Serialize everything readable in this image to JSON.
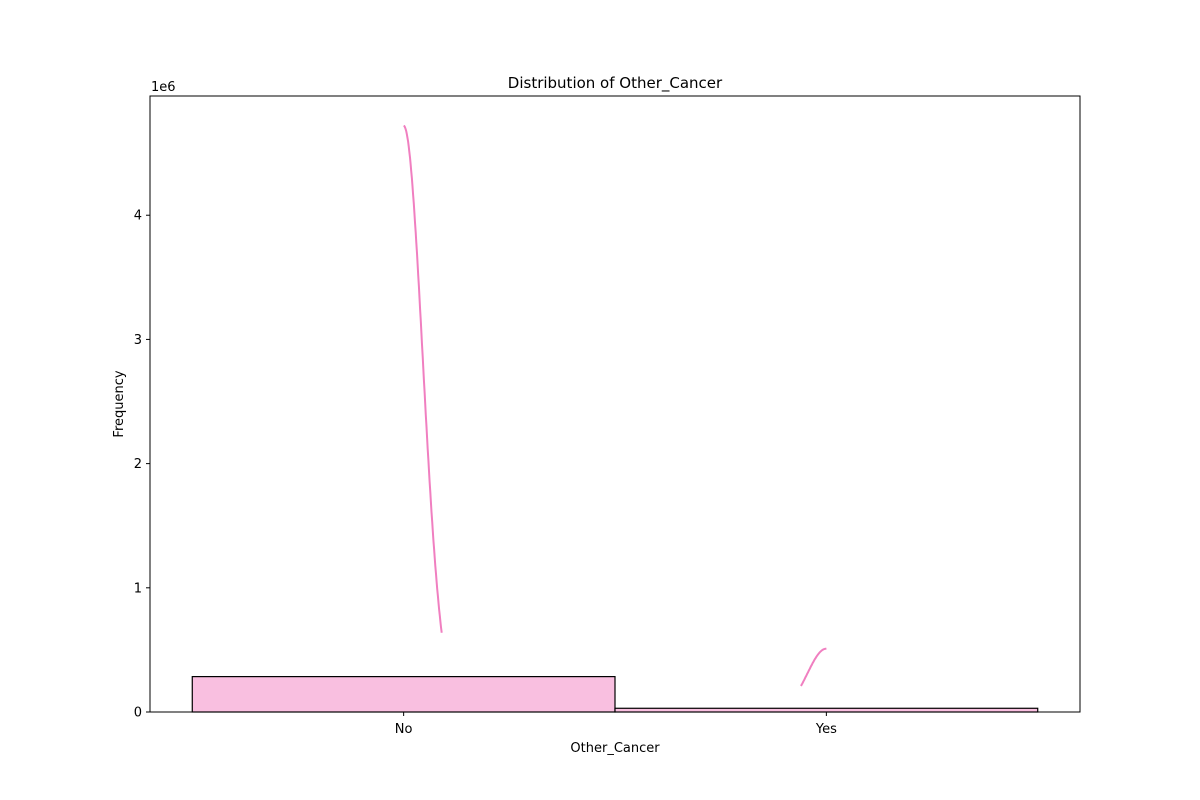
{
  "chart_data": {
    "type": "bar",
    "title": "Distribution of Other_Cancer",
    "xlabel": "Other_Cancer",
    "ylabel": "Frequency",
    "categories": [
      "No",
      "Yes"
    ],
    "values": [
      285000,
      30000
    ],
    "ylim": [
      0,
      4960000
    ],
    "yticks": [
      0,
      1000000,
      2000000,
      3000000,
      4000000
    ],
    "ytick_labels": [
      "0",
      "1",
      "2",
      "3",
      "4"
    ],
    "y_offset_label": "1e6",
    "kde": {
      "peak_values": [
        4720000,
        510000
      ]
    },
    "colors": {
      "bar_fill": "#f9bfe0",
      "bar_edge": "#000000",
      "kde_line": "#f07fc0"
    },
    "grid": false,
    "legend": "none"
  }
}
